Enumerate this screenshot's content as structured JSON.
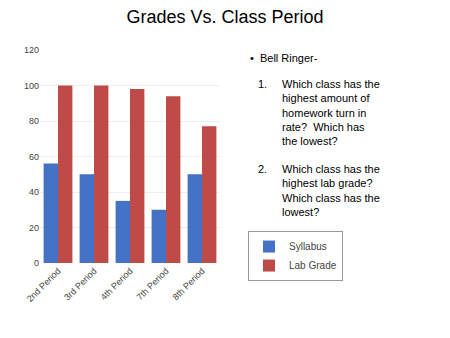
{
  "chart_data": {
    "type": "bar",
    "title": "Grades Vs. Class Period",
    "categories": [
      "2nd Period",
      "3rd Period",
      "4th Period",
      "7th Period",
      "8th Period"
    ],
    "series": [
      {
        "name": "Syllabus",
        "color": "#4472C4",
        "values": [
          56,
          50,
          35,
          30,
          50
        ]
      },
      {
        "name": "Lab Grade",
        "color": "#BE4B48",
        "values": [
          100,
          100,
          98,
          94,
          77
        ]
      }
    ],
    "ylim": [
      0,
      120
    ],
    "yticks": [
      0,
      20,
      40,
      60,
      80,
      100,
      120
    ],
    "grid": true,
    "legend": "right",
    "annotations": [
      "•  Bell Ringer-",
      "1.",
      "Which class has the\nhighest amount of\nhomework turn in\nrate?  Which has\nthe lowest?",
      "2.",
      "Which class has the\nhighest lab grade?\nWhich class has the\nlowest?"
    ]
  }
}
